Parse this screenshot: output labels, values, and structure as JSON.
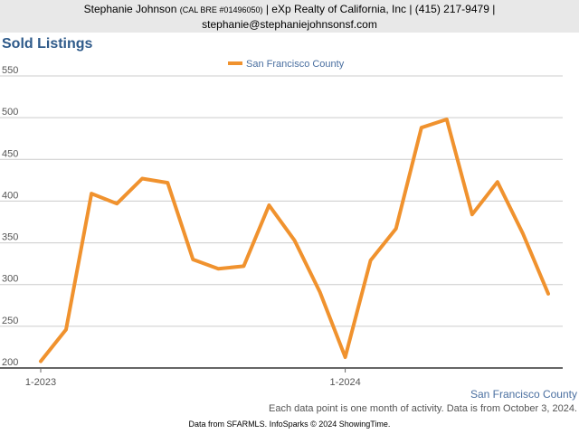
{
  "header": {
    "agent_name": "Stephanie Johnson",
    "license": "(CAL BRE #01496050)",
    "brokerage_phone": "| eXp Realty of California, Inc | (415) 217-9479 |",
    "email": "stephanie@stephaniejohnsonsf.com"
  },
  "footer": {
    "series_label": "San Francisco County",
    "note": "Each data point is one month of activity. Data is from October 3, 2024.",
    "source": "Data from SFARMLS. InfoSparks © 2024 ShowingTime."
  },
  "colors": {
    "series": "#f0922e",
    "title": "#2e5a8a",
    "grid": "#cccccc"
  },
  "chart_data": {
    "type": "line",
    "title": "Sold Listings",
    "x": [
      "1-2023",
      "2-2023",
      "3-2023",
      "4-2023",
      "5-2023",
      "6-2023",
      "7-2023",
      "8-2023",
      "9-2023",
      "10-2023",
      "11-2023",
      "12-2023",
      "1-2024",
      "2-2024",
      "3-2024",
      "4-2024",
      "5-2024",
      "6-2024",
      "7-2024",
      "8-2024",
      "9-2024"
    ],
    "x_tick_labels": [
      "1-2023",
      "1-2024"
    ],
    "series": [
      {
        "name": "San Francisco County",
        "values": [
          208,
          246,
          409,
          397,
          427,
          422,
          330,
          319,
          322,
          395,
          353,
          291,
          213,
          329,
          367,
          488,
          498,
          384,
          423,
          361,
          289
        ]
      }
    ],
    "y_ticks": [
      200,
      250,
      300,
      350,
      400,
      450,
      500,
      550
    ],
    "ylim": [
      200,
      550
    ],
    "grid": true,
    "legend_position": "top-center"
  }
}
